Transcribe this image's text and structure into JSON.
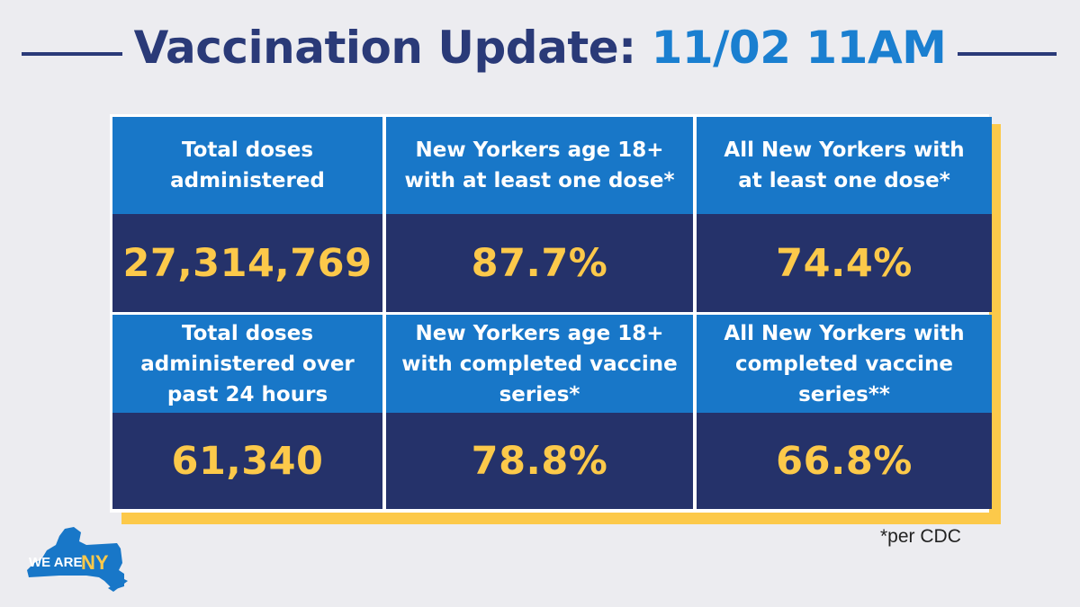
{
  "header": {
    "title": "Vaccination Update:",
    "date_time": "11/02 11AM"
  },
  "stats": [
    {
      "label": "Total doses\nadministered",
      "value": "27,314,769"
    },
    {
      "label": "New Yorkers age 18+\nwith at least one dose*",
      "value": "87.7%"
    },
    {
      "label": "All New Yorkers with\nat least one dose*",
      "value": "74.4%"
    },
    {
      "label": "Total doses\nadministered over\npast 24 hours",
      "value": "61,340"
    },
    {
      "label": "New Yorkers age 18+\nwith completed vaccine\nseries*",
      "value": "78.8%"
    },
    {
      "label": "All New Yorkers with\ncompleted vaccine\nseries**",
      "value": "66.8%"
    }
  ],
  "footnote": "*per CDC",
  "logo": {
    "text_we_are": "WE ARE",
    "text_ny": "NY",
    "icon": "new-york-state-map-icon"
  },
  "colors": {
    "navy": "#2a3a78",
    "blue": "#1877c8",
    "dark_navy": "#25326a",
    "gold": "#fcc94a",
    "background": "#ececf0"
  }
}
